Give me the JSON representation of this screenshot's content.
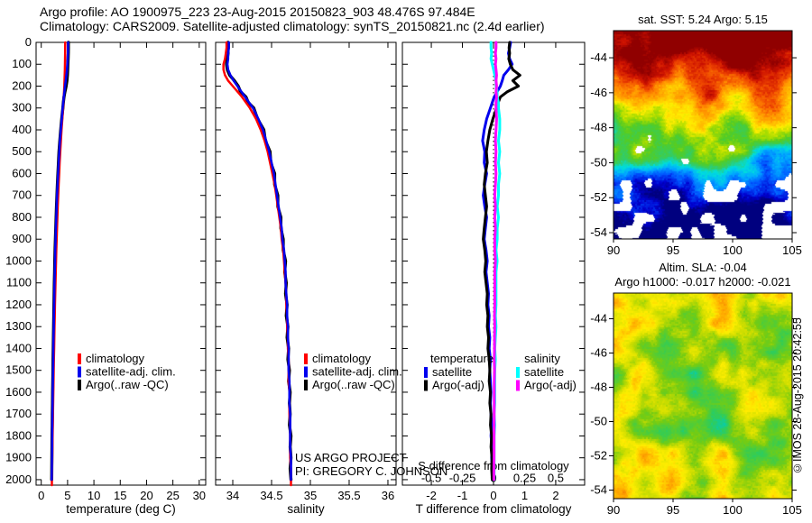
{
  "header": {
    "line1": "Argo profile: AO 1900975_223 23-Aug-2015 20150823_903 48.476S 97.484E",
    "line2": "Climatology: CARS2009. Satellite-adjusted climatology: synTS_20150821.nc (2.4d earlier)"
  },
  "annotations": {
    "project_line1": "US ARGO PROJECT",
    "project_line2": "PI: GREGORY C. JOHNSON",
    "credit": "©IMOS 28-Aug-2015 20:42:55"
  },
  "chart_data": {
    "type": "multi-panel",
    "depths": [
      0,
      25,
      50,
      75,
      100,
      125,
      150,
      175,
      200,
      225,
      250,
      275,
      300,
      350,
      400,
      450,
      500,
      550,
      600,
      650,
      700,
      750,
      800,
      850,
      900,
      950,
      1000,
      1050,
      1100,
      1150,
      1200,
      1250,
      1300,
      1350,
      1400,
      1450,
      1500,
      1550,
      1600,
      1650,
      1700,
      1750,
      1800,
      1850,
      1900,
      1950,
      2000,
      2025
    ],
    "panels": {
      "temperature": {
        "type": "line",
        "xlabel": "temperature (deg C)",
        "xticks": [
          0,
          5,
          10,
          15,
          20,
          25,
          30
        ],
        "xtick_labels": [
          "0",
          "5",
          "10",
          "15",
          "20",
          "25",
          "30"
        ],
        "xlim": [
          -0.98,
          31.23
        ],
        "ylim": [
          0,
          2025
        ],
        "yticks": [
          0,
          100,
          200,
          300,
          400,
          500,
          600,
          700,
          800,
          900,
          1000,
          1100,
          1200,
          1300,
          1400,
          1500,
          1600,
          1700,
          1800,
          1900,
          2000
        ],
        "legend": [
          {
            "label": "climatology",
            "color": "#ff0000"
          },
          {
            "label": "satellite-adj. clim.",
            "color": "#0000ee"
          },
          {
            "label": "Argo(..raw -QC)",
            "color": "#000000"
          }
        ],
        "series": [
          {
            "name": "Argo(..raw -QC)",
            "color": "#000000",
            "width": 3.4,
            "values": [
              5.15,
              5.15,
              5.13,
              5.1,
              5.05,
              5.01,
              4.97,
              4.88,
              4.72,
              4.5,
              4.32,
              4.2,
              4.1,
              3.88,
              3.7,
              3.52,
              3.38,
              3.27,
              3.16,
              3.06,
              2.97,
              2.9,
              2.82,
              2.75,
              2.68,
              2.62,
              2.57,
              2.53,
              2.48,
              2.44,
              2.41,
              2.37,
              2.34,
              2.31,
              2.27,
              2.24,
              2.22,
              2.19,
              2.16,
              2.14,
              2.11,
              2.09,
              2.06,
              2.04,
              2.02,
              2.0,
              1.98,
              null
            ]
          },
          {
            "name": "climatology",
            "color": "#ff0000",
            "width": 2.5,
            "values": [
              4.55,
              4.54,
              4.53,
              4.52,
              4.5,
              4.48,
              4.45,
              4.42,
              4.38,
              4.33,
              4.27,
              4.21,
              4.15,
              4.0,
              3.86,
              3.73,
              3.61,
              3.5,
              3.4,
              3.31,
              3.22,
              3.14,
              3.06,
              2.99,
              2.92,
              2.86,
              2.8,
              2.75,
              2.7,
              2.65,
              2.6,
              2.56,
              2.52,
              2.48,
              2.44,
              2.4,
              2.36,
              2.33,
              2.29,
              2.26,
              2.22,
              2.19,
              2.15,
              2.12,
              2.08,
              2.05,
              2.02,
              2.01
            ]
          },
          {
            "name": "satellite-adj. clim.",
            "color": "#0000ee",
            "width": 2.6,
            "values": [
              5.1,
              5.09,
              5.07,
              5.03,
              4.97,
              4.89,
              4.78,
              4.65,
              4.52,
              4.4,
              4.28,
              4.18,
              4.08,
              3.9,
              3.72,
              3.55,
              3.42,
              3.3,
              3.2,
              3.1,
              3.0,
              2.92,
              2.85,
              2.78,
              2.72,
              2.66,
              2.61,
              2.56,
              2.52,
              2.48,
              2.44,
              2.4,
              2.37,
              2.33,
              2.3,
              2.27,
              2.24,
              2.21,
              2.18,
              2.15,
              2.12,
              2.09,
              2.07,
              2.05,
              2.03,
              2.01,
              1.99,
              null
            ]
          }
        ]
      },
      "salinity": {
        "type": "line",
        "xlabel": "salinity",
        "xticks": [
          34,
          34.5,
          35,
          35.5,
          36
        ],
        "xtick_labels": [
          "34",
          "34.5",
          "35",
          "35.5",
          "36"
        ],
        "xlim": [
          33.779,
          36.105
        ],
        "ylim": [
          0,
          2025
        ],
        "yticks": [
          0,
          100,
          200,
          300,
          400,
          500,
          600,
          700,
          800,
          900,
          1000,
          1100,
          1200,
          1300,
          1400,
          1500,
          1600,
          1700,
          1800,
          1900,
          2000
        ],
        "legend": [
          {
            "label": "climatology",
            "color": "#ff0000"
          },
          {
            "label": "satellite-adj. clim.",
            "color": "#0000ee"
          },
          {
            "label": "Argo(..raw -QC)",
            "color": "#000000"
          }
        ],
        "series": [
          {
            "name": "Argo(..raw -QC)",
            "color": "#000000",
            "width": 3.4,
            "values": [
              33.94,
              33.94,
              33.94,
              33.93,
              33.92,
              33.93,
              33.96,
              34.02,
              34.07,
              34.1,
              34.17,
              34.2,
              34.27,
              34.32,
              34.4,
              34.42,
              34.48,
              34.49,
              34.54,
              34.54,
              34.58,
              34.58,
              34.62,
              34.62,
              34.65,
              34.65,
              34.68,
              34.67,
              34.69,
              34.68,
              34.7,
              34.69,
              34.71,
              34.7,
              34.72,
              34.71,
              34.73,
              34.72,
              34.74,
              34.73,
              34.74,
              34.73,
              34.75,
              34.74,
              34.75,
              34.74,
              34.75,
              null
            ]
          },
          {
            "name": "climatology",
            "color": "#ff0000",
            "width": 2.5,
            "values": [
              33.92,
              33.92,
              33.91,
              33.9,
              33.88,
              33.88,
              33.9,
              33.94,
              34.0,
              34.06,
              34.12,
              34.17,
              34.22,
              34.3,
              34.36,
              34.41,
              34.45,
              34.48,
              34.51,
              34.54,
              34.56,
              34.58,
              34.6,
              34.62,
              34.63,
              34.65,
              34.66,
              34.67,
              34.68,
              34.69,
              34.69,
              34.7,
              34.7,
              34.71,
              34.71,
              34.72,
              34.72,
              34.72,
              34.73,
              34.73,
              34.73,
              34.74,
              34.74,
              34.74,
              34.74,
              34.75,
              34.75,
              34.75
            ]
          },
          {
            "name": "satellite-adj. clim.",
            "color": "#0000ee",
            "width": 2.6,
            "values": [
              33.95,
              33.95,
              33.94,
              33.94,
              33.93,
              33.94,
              33.97,
              34.01,
              34.06,
              34.11,
              34.16,
              34.21,
              34.26,
              34.33,
              34.39,
              34.43,
              34.47,
              34.5,
              34.53,
              34.55,
              34.57,
              34.59,
              34.61,
              34.63,
              34.64,
              34.66,
              34.67,
              34.68,
              34.68,
              34.69,
              34.7,
              34.7,
              34.71,
              34.71,
              34.72,
              34.72,
              34.72,
              34.73,
              34.73,
              34.73,
              34.74,
              34.74,
              34.74,
              34.74,
              34.75,
              34.75,
              34.75,
              null
            ]
          }
        ]
      },
      "difference": {
        "type": "line",
        "xlabel": "T difference from climatology",
        "s_axis_label": "S difference from climatology",
        "xticks": [
          -2,
          -1,
          0,
          1,
          2
        ],
        "xtick_labels": [
          "-2",
          "-1",
          "0",
          "1",
          "2"
        ],
        "s_tick_labels": [
          "-0.5",
          "-0.25",
          "0",
          "0.25",
          "0.5"
        ],
        "s_scale": 4,
        "xlim": [
          -2.93,
          2.93
        ],
        "ylim": [
          0,
          2025
        ],
        "yticks": [
          0,
          100,
          200,
          300,
          400,
          500,
          600,
          700,
          800,
          900,
          1000,
          1100,
          1200,
          1300,
          1400,
          1500,
          1600,
          1700,
          1800,
          1900,
          2000
        ],
        "legend_temperature": {
          "title": "temperature",
          "items": [
            {
              "label": "satellite",
              "color": "#0000ee"
            },
            {
              "label": "Argo(-adj)",
              "color": "#000000"
            }
          ]
        },
        "legend_salinity": {
          "title": "salinity",
          "items": [
            {
              "label": "satellite",
              "color": "#00ffff"
            },
            {
              "label": "Argo(-adj)",
              "color": "#ff00ff"
            }
          ]
        },
        "series": [
          {
            "name": "T satellite",
            "color": "#0000ee",
            "width": 3,
            "scale": 1,
            "values": [
              0.55,
              0.52,
              0.48,
              0.52,
              0.6,
              0.48,
              0.33,
              0.28,
              0.22,
              0.12,
              0.02,
              -0.04,
              -0.1,
              -0.22,
              -0.3,
              -0.35,
              -0.28,
              -0.3,
              -0.22,
              -0.28,
              -0.33,
              -0.28,
              -0.22,
              -0.26,
              -0.3,
              -0.24,
              -0.2,
              -0.24,
              -0.2,
              -0.16,
              -0.18,
              -0.14,
              -0.16,
              -0.12,
              -0.14,
              -0.1,
              -0.12,
              -0.1,
              -0.08,
              -0.1,
              -0.08,
              -0.06,
              -0.08,
              -0.05,
              -0.06,
              -0.04,
              -0.04,
              null
            ]
          },
          {
            "name": "T Argo(-adj)",
            "color": "#000000",
            "width": 3,
            "scale": 1,
            "values": [
              0.52,
              0.5,
              0.52,
              0.49,
              0.54,
              0.62,
              0.85,
              0.62,
              0.8,
              0.45,
              0.22,
              0.15,
              0.1,
              -0.02,
              -0.12,
              -0.18,
              -0.23,
              -0.2,
              -0.26,
              -0.3,
              -0.26,
              -0.22,
              -0.26,
              -0.3,
              -0.33,
              -0.28,
              -0.25,
              -0.28,
              -0.24,
              -0.2,
              -0.22,
              -0.18,
              -0.2,
              -0.16,
              -0.18,
              -0.14,
              -0.12,
              -0.14,
              -0.1,
              -0.12,
              -0.08,
              -0.1,
              -0.06,
              -0.08,
              -0.05,
              -0.06,
              -0.04,
              null
            ]
          },
          {
            "name": "S satellite",
            "color": "#00ffff",
            "width": 3,
            "scale": 4,
            "values": [
              -0.02,
              -0.02,
              -0.015,
              -0.02,
              -0.01,
              0.0,
              0.01,
              0.02,
              0.02,
              0.03,
              0.03,
              0.04,
              0.04,
              0.05,
              0.05,
              0.04,
              0.05,
              0.04,
              0.05,
              0.04,
              0.04,
              0.03,
              0.04,
              0.03,
              0.03,
              0.02,
              0.03,
              0.02,
              0.02,
              0.02,
              0.02,
              0.015,
              0.02,
              0.015,
              0.01,
              0.015,
              0.01,
              0.01,
              0.01,
              0.01,
              0.005,
              0.01,
              0.005,
              0.005,
              0.005,
              0.005,
              0.005,
              null
            ]
          },
          {
            "name": "S Argo(-adj)",
            "color": "#ff00ff",
            "width": 3,
            "scale": 4,
            "values": [
              0.02,
              0.02,
              0.015,
              0.02,
              0.015,
              0.02,
              0.025,
              0.02,
              0.025,
              0.02,
              0.025,
              0.02,
              0.02,
              0.025,
              0.02,
              0.015,
              0.02,
              0.015,
              0.02,
              0.015,
              0.01,
              0.015,
              0.01,
              0.015,
              0.01,
              0.01,
              0.015,
              0.01,
              0.01,
              0.01,
              0.01,
              0.008,
              0.01,
              0.008,
              0.008,
              0.006,
              0.008,
              0.006,
              0.006,
              0.006,
              0.005,
              0.005,
              0.004,
              0.004,
              0.004,
              0.003,
              0.003,
              null
            ]
          }
        ]
      },
      "sst_map": {
        "type": "heatmap",
        "title": "sat. SST: 5.24 Argo: 5.15",
        "xticks": [
          90,
          95,
          100,
          105
        ],
        "xtick_labels": [
          "90",
          "95",
          "100",
          "105"
        ],
        "yticks": [
          -44,
          -46,
          -48,
          -50,
          -52,
          -54
        ],
        "ytick_labels": [
          "-44",
          "-46",
          "-48",
          "-50",
          "-52",
          "-54"
        ],
        "lon_range": [
          90,
          105
        ],
        "lat_range": [
          -42.45,
          -54.36
        ],
        "palette": [
          [
            0,
            "#00007f"
          ],
          [
            0.07,
            "#0000d0"
          ],
          [
            0.15,
            "#0055ff"
          ],
          [
            0.24,
            "#00aaff"
          ],
          [
            0.32,
            "#00dddd"
          ],
          [
            0.4,
            "#33cc66"
          ],
          [
            0.48,
            "#55cc22"
          ],
          [
            0.56,
            "#aadd00"
          ],
          [
            0.63,
            "#ffee00"
          ],
          [
            0.71,
            "#ffbb00"
          ],
          [
            0.78,
            "#ff8800"
          ],
          [
            0.85,
            "#ee4400"
          ],
          [
            0.92,
            "#cc1100"
          ],
          [
            1,
            "#900000"
          ]
        ],
        "render": {
          "seed": 7,
          "grad": true,
          "top": 1.15,
          "bottom": -0.15,
          "amp1": 0.16,
          "scale1": 34,
          "amp2": 0.07,
          "scale2": 12,
          "jitter": 0.06,
          "clouds": true,
          "cloud_base": 0.6,
          "cloud_falloff": 0.65
        }
      },
      "sla_map": {
        "type": "heatmap",
        "title_line1": "Altim. SLA: -0.04",
        "title_line2": "Argo h1000: -0.017 h2000: -0.021",
        "xticks": [
          90,
          95,
          100,
          105
        ],
        "xtick_labels": [
          "90",
          "95",
          "100",
          "105"
        ],
        "yticks": [
          -44,
          -46,
          -48,
          -50,
          -52,
          -54
        ],
        "ytick_labels": [
          "-44",
          "-46",
          "-48",
          "-50",
          "-52",
          "-54"
        ],
        "lon_range": [
          90,
          105
        ],
        "lat_range": [
          -42.5,
          -54.5
        ],
        "palette": [
          [
            0,
            "#00aaee"
          ],
          [
            0.15,
            "#00ccbb"
          ],
          [
            0.28,
            "#33cc55"
          ],
          [
            0.42,
            "#77cc11"
          ],
          [
            0.52,
            "#ccdd00"
          ],
          [
            0.62,
            "#ffee00"
          ],
          [
            0.75,
            "#ffaa00"
          ],
          [
            0.87,
            "#ee6600"
          ],
          [
            1,
            "#cc2200"
          ]
        ],
        "render": {
          "seed": 41,
          "grad": false,
          "base": 0.52,
          "amp1": 0.26,
          "scale1": 30,
          "amp2": 0.09,
          "scale2": 11,
          "jitter": 0.07,
          "clouds": false
        }
      }
    }
  }
}
